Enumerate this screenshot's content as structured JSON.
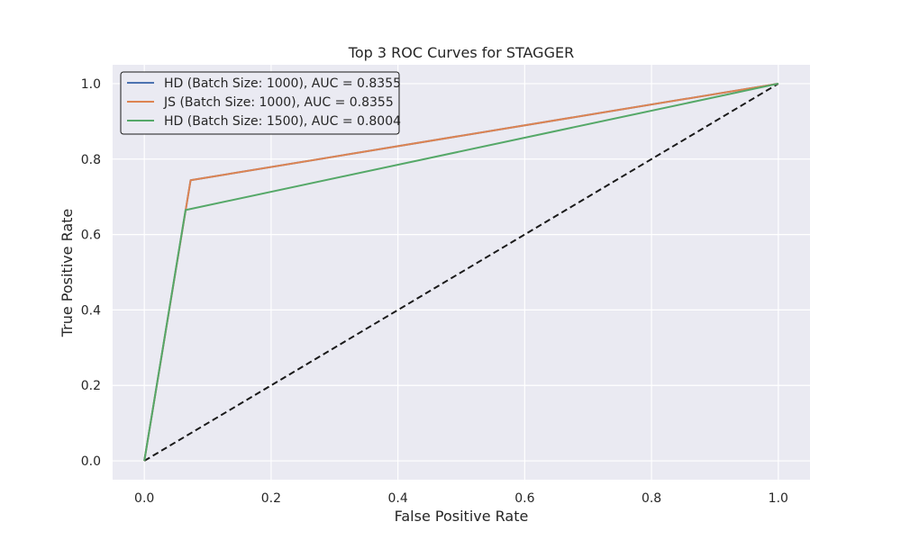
{
  "chart_data": {
    "type": "line",
    "title": "Top 3 ROC Curves for STAGGER",
    "xlabel": "False Positive Rate",
    "ylabel": "True Positive Rate",
    "xlim": [
      -0.05,
      1.05
    ],
    "ylim": [
      -0.05,
      1.05
    ],
    "x_ticks": [
      0.0,
      0.2,
      0.4,
      0.6,
      0.8,
      1.0
    ],
    "y_ticks": [
      0.0,
      0.2,
      0.4,
      0.6,
      0.8,
      1.0
    ],
    "x_tick_labels": [
      "0.0",
      "0.2",
      "0.4",
      "0.6",
      "0.8",
      "1.0"
    ],
    "y_tick_labels": [
      "0.0",
      "0.2",
      "0.4",
      "0.6",
      "0.8",
      "1.0"
    ],
    "grid": true,
    "legend_position": "top-left",
    "series": [
      {
        "name": "HD (Batch Size: 1000), AUC = 0.8355",
        "color": "#4c72b0",
        "x": [
          0.0,
          0.073,
          1.0
        ],
        "y": [
          0.0,
          0.744,
          1.0
        ]
      },
      {
        "name": "JS (Batch Size: 1000), AUC = 0.8355",
        "color": "#dd8452",
        "x": [
          0.0,
          0.073,
          1.0
        ],
        "y": [
          0.0,
          0.744,
          1.0
        ]
      },
      {
        "name": "HD (Batch Size: 1500), AUC = 0.8004",
        "color": "#55a868",
        "x": [
          0.0,
          0.065,
          1.0
        ],
        "y": [
          0.0,
          0.665,
          1.0
        ]
      }
    ],
    "reference_line": {
      "color": "#1a1a1a",
      "style": "dashed",
      "x": [
        0,
        1
      ],
      "y": [
        0,
        1
      ]
    },
    "colors": {
      "plot_background": "#eaeaf2",
      "grid": "#ffffff"
    }
  }
}
